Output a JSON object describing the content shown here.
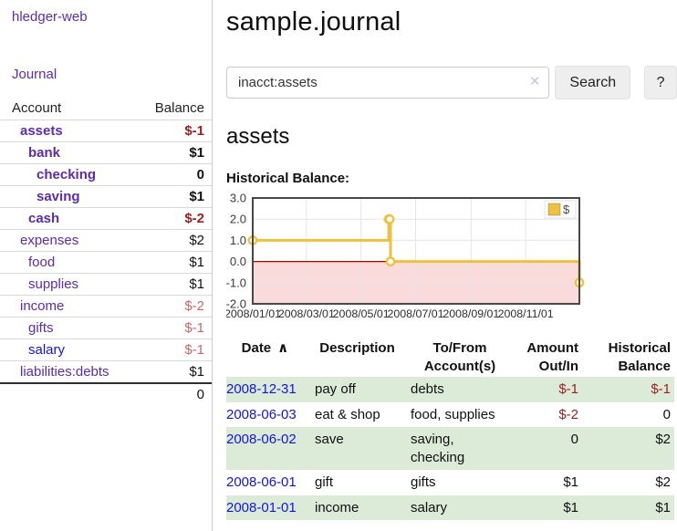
{
  "sidebar": {
    "app_title": "hledger-web",
    "nav_journal_label": "Journal",
    "accounts_table": {
      "headers": [
        "Account",
        "Balance"
      ],
      "rows": [
        {
          "account": "assets",
          "balance": "$-1",
          "depth": 1,
          "bold": true,
          "balance_class": "neg-strong",
          "link": "visited"
        },
        {
          "account": "bank",
          "balance": "$1",
          "depth": 2,
          "bold": true,
          "balance_class": "pos",
          "link": "visited"
        },
        {
          "account": "checking",
          "balance": "0",
          "depth": 3,
          "bold": true,
          "balance_class": "pos",
          "link": "visited"
        },
        {
          "account": "saving",
          "balance": "$1",
          "depth": 3,
          "bold": true,
          "balance_class": "pos",
          "link": "visited"
        },
        {
          "account": "cash",
          "balance": "$-2",
          "depth": 2,
          "bold": true,
          "balance_class": "neg-strong",
          "link": "visited"
        },
        {
          "account": "expenses",
          "balance": "$2",
          "depth": 1,
          "bold": false,
          "balance_class": "pos",
          "link": "visited"
        },
        {
          "account": "food",
          "balance": "$1",
          "depth": 2,
          "bold": false,
          "balance_class": "pos",
          "link": "visited"
        },
        {
          "account": "supplies",
          "balance": "$1",
          "depth": 2,
          "bold": false,
          "balance_class": "pos",
          "link": "visited"
        },
        {
          "account": "income",
          "balance": "$-2",
          "depth": 1,
          "bold": false,
          "balance_class": "neg-soft",
          "link": "visited"
        },
        {
          "account": "gifts",
          "balance": "$-1",
          "depth": 2,
          "bold": false,
          "balance_class": "neg-soft",
          "link": "visited"
        },
        {
          "account": "salary",
          "balance": "$-1",
          "depth": 2,
          "bold": false,
          "balance_class": "neg-soft",
          "link": "unvisited"
        },
        {
          "account": "liabilities:debts",
          "balance": "$1",
          "depth": 1,
          "bold": false,
          "balance_class": "pos",
          "link": "visited"
        }
      ],
      "total": "0"
    }
  },
  "header": {
    "title": "sample.journal"
  },
  "search": {
    "value": "inacct:assets",
    "clear_icon": "✕",
    "button_label": "Search",
    "help_label": "?"
  },
  "account_page": {
    "title": "assets",
    "chart_label": "Historical Balance:"
  },
  "chart_data": {
    "type": "line",
    "title": "Historical Balance",
    "step": true,
    "series": [
      {
        "name": "$",
        "color": "#edc240",
        "points": [
          [
            "2008-01-01",
            1
          ],
          [
            "2008-06-01",
            2
          ],
          [
            "2008-06-02",
            2
          ],
          [
            "2008-06-03",
            0
          ],
          [
            "2008-12-31",
            -1
          ]
        ]
      }
    ],
    "x_range": [
      "2008-01-01",
      "2008-12-31"
    ],
    "y_range": [
      -2,
      3
    ],
    "y_ticks": [
      3,
      2,
      1,
      0,
      -1,
      -2
    ],
    "y_tick_labels": [
      "3.0",
      "2.0",
      "1.0",
      "0.0",
      "-1.0",
      "-2.0"
    ],
    "x_ticks": [
      "2008-01-01",
      "2008-03-01",
      "2008-05-01",
      "2008-07-01",
      "2008-09-01",
      "2008-11-01"
    ],
    "x_tick_labels": [
      "2008/01/01",
      "2008/03/01",
      "2008/05/01",
      "2008/07/01",
      "2008/09/01",
      "2008/11/01"
    ],
    "grid": true,
    "legend_label": "$",
    "legend_position": "top-right",
    "negative_region_color": "#f9dbdb",
    "zero_line_color": "#a40000"
  },
  "journal": {
    "columns": [
      {
        "label": "Date",
        "sort_icon": "∧",
        "align": "left"
      },
      {
        "label": "Description",
        "align": "left"
      },
      {
        "label": "To/From Account(s)",
        "align": "left"
      },
      {
        "label": "Amount Out/In",
        "align": "right"
      },
      {
        "label": "Historical Balance",
        "align": "right"
      }
    ],
    "rows": [
      {
        "date": "2008-12-31",
        "description": "pay off",
        "accounts": "debts",
        "amount": "$-1",
        "balance": "$-1"
      },
      {
        "date": "2008-06-03",
        "description": "eat & shop",
        "accounts": "food, supplies",
        "amount": "$-2",
        "balance": "0"
      },
      {
        "date": "2008-06-02",
        "description": "save",
        "accounts": "saving, checking",
        "amount": "0",
        "balance": "$2"
      },
      {
        "date": "2008-06-01",
        "description": "gift",
        "accounts": "gifts",
        "amount": "$1",
        "balance": "$2"
      },
      {
        "date": "2008-01-01",
        "description": "income",
        "accounts": "salary",
        "amount": "$1",
        "balance": "$1"
      }
    ]
  },
  "colors": {
    "link_visited_purple": "#5e2ca5",
    "link_blue": "#1414e0",
    "negative_strong": "#9c1f1f",
    "negative_soft": "#c46a6a",
    "row_stripe_green": "#dcead8",
    "series_gold": "#edc240",
    "negative_region_pink": "#f9dbdb",
    "zero_line_red": "#a40000"
  }
}
